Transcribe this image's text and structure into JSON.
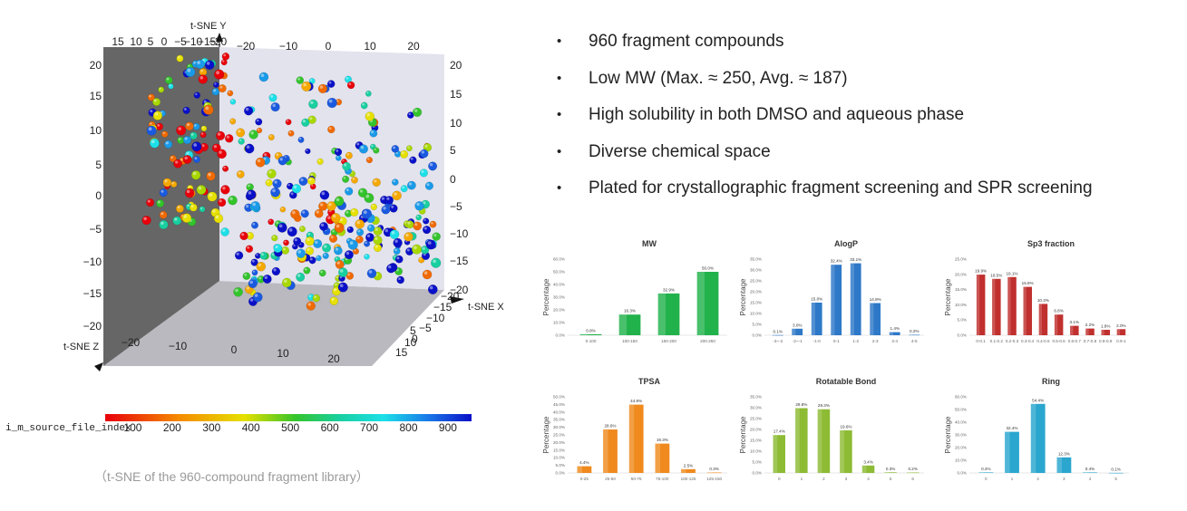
{
  "tsne": {
    "axis_titles": {
      "x": "t-SNE X",
      "y": "t-SNE Y",
      "z": "t-SNE Z"
    },
    "top_ticks_left": [
      "15",
      "10",
      "5",
      "0",
      "−5",
      "−10",
      "−15",
      "−20"
    ],
    "top_ticks_right": [
      "−20",
      "−10",
      "0",
      "10",
      "20"
    ],
    "left_ticks": [
      "20",
      "15",
      "10",
      "5",
      "0",
      "−5",
      "−10",
      "−15",
      "−20"
    ],
    "right_ticks": [
      "20",
      "15",
      "10",
      "5",
      "0",
      "−5",
      "−10",
      "−15",
      "−20"
    ],
    "floor_right_ticks": [
      "−20",
      "−15",
      "−10",
      "−5",
      "0",
      "5",
      "10",
      "15"
    ],
    "bottom_ticks": [
      "−20",
      "−10",
      "0",
      "10",
      "20"
    ],
    "colors": {
      "back_wall": "#e3e3ee",
      "left_wall": "#666666",
      "floor": "#b9b9bf"
    },
    "colorbar": {
      "title": "i_m_source_file_index",
      "ticks": [
        "100",
        "200",
        "300",
        "400",
        "500",
        "600",
        "700",
        "800",
        "900"
      ],
      "range": [
        30,
        960
      ]
    }
  },
  "caption": "（t-SNE of the 960-compound fragment library）",
  "bullets": [
    "960 fragment compounds",
    "Low MW (Max. ≈ 250, Avg. ≈ 187)",
    "High solubility in both DMSO and aqueous phase",
    "Diverse chemical space",
    "Plated for crystallographic fragment screening and SPR screening"
  ],
  "bullet_symbol": "•",
  "chart_data": [
    {
      "type": "bar",
      "title": "MW",
      "ylabel": "Percentage",
      "color": "#22b24c",
      "categories": [
        "0-100",
        "100-150",
        "150-200",
        "200-250"
      ],
      "values": [
        0.8,
        16.3,
        32.9,
        50.0
      ],
      "value_labels": [
        "0.8%",
        "16.3%",
        "32.9%",
        "50.0%"
      ],
      "yticks": [
        "0.0%",
        "10.0%",
        "20.0%",
        "30.0%",
        "40.0%",
        "50.0%",
        "60.0%"
      ],
      "ylim": [
        0,
        60
      ]
    },
    {
      "type": "bar",
      "title": "AlogP",
      "ylabel": "Percentage",
      "color": "#2e78c8",
      "categories": [
        "-3~-2",
        "-2~-1",
        "-1-0",
        "0-1",
        "1-2",
        "2-3",
        "3-4",
        "4-5"
      ],
      "values": [
        0.1,
        3.0,
        15.0,
        32.4,
        33.1,
        14.8,
        1.4,
        0.2
      ],
      "value_labels": [
        "0.1%",
        "3.0%",
        "15.0%",
        "32.4%",
        "33.1%",
        "14.8%",
        "1.4%",
        "0.2%"
      ],
      "yticks": [
        "0.0%",
        "5.0%",
        "10.0%",
        "15.0%",
        "20.0%",
        "25.0%",
        "30.0%",
        "35.0%"
      ],
      "ylim": [
        0,
        35
      ]
    },
    {
      "type": "bar",
      "title": "Sp3 fraction",
      "ylabel": "Percentage",
      "color": "#c0302e",
      "categories": [
        "0-0.1",
        "0.1-0.2",
        "0.2-0.3",
        "0.3-0.4",
        "0.4-0.5",
        "0.5-0.6",
        "0.6-0.7",
        "0.7-0.8",
        "0.8-0.9",
        "0.9-1"
      ],
      "values": [
        19.9,
        18.5,
        19.1,
        15.9,
        10.3,
        6.8,
        3.1,
        2.2,
        1.8,
        2.0
      ],
      "value_labels": [
        "19.9%",
        "18.5%",
        "19.1%",
        "15.9%",
        "10.3%",
        "6.8%",
        "3.1%",
        "2.2%",
        "1.8%",
        "2.0%"
      ],
      "yticks": [
        "0.0%",
        "5.0%",
        "10.0%",
        "15.0%",
        "20.0%",
        "25.0%"
      ],
      "ylim": [
        0,
        25
      ]
    },
    {
      "type": "bar",
      "title": "TPSA",
      "ylabel": "Percentage",
      "color": "#f08a1e",
      "categories": [
        "0-25",
        "25-50",
        "50-75",
        "75-100",
        "100-125",
        "125-150"
      ],
      "values": [
        4.4,
        28.6,
        44.9,
        19.3,
        2.5,
        0.3
      ],
      "value_labels": [
        "4.4%",
        "28.6%",
        "44.9%",
        "19.3%",
        "2.5%",
        "0.3%"
      ],
      "yticks": [
        "0.0%",
        "5.0%",
        "10.0%",
        "15.0%",
        "20.0%",
        "25.0%",
        "30.0%",
        "35.0%",
        "40.0%",
        "45.0%",
        "50.0%"
      ],
      "ylim": [
        0,
        50
      ]
    },
    {
      "type": "bar",
      "title": "Rotatable Bond",
      "ylabel": "Percentage",
      "color": "#8dbb34",
      "categories": [
        "0",
        "1",
        "2",
        "3",
        "4",
        "5",
        "6"
      ],
      "values": [
        17.4,
        29.8,
        29.3,
        19.6,
        3.4,
        0.3,
        0.2
      ],
      "value_labels": [
        "17.4%",
        "29.8%",
        "29.3%",
        "19.6%",
        "3.4%",
        "0.3%",
        "0.2%"
      ],
      "yticks": [
        "0.0%",
        "5.0%",
        "10.0%",
        "15.0%",
        "20.0%",
        "25.0%",
        "30.0%",
        "35.0%"
      ],
      "ylim": [
        0,
        35
      ]
    },
    {
      "type": "bar",
      "title": "Ring",
      "ylabel": "Percentage",
      "color": "#2aa6cf",
      "categories": [
        "0",
        "1",
        "2",
        "3",
        "4",
        "5"
      ],
      "values": [
        0.4,
        32.4,
        54.4,
        12.3,
        0.4,
        0.1
      ],
      "value_labels": [
        "0.4%",
        "32.4%",
        "54.4%",
        "12.3%",
        "0.4%",
        "0.1%"
      ],
      "yticks": [
        "0.0%",
        "10.0%",
        "20.0%",
        "30.0%",
        "40.0%",
        "50.0%",
        "60.0%"
      ],
      "ylim": [
        0,
        60
      ]
    }
  ]
}
